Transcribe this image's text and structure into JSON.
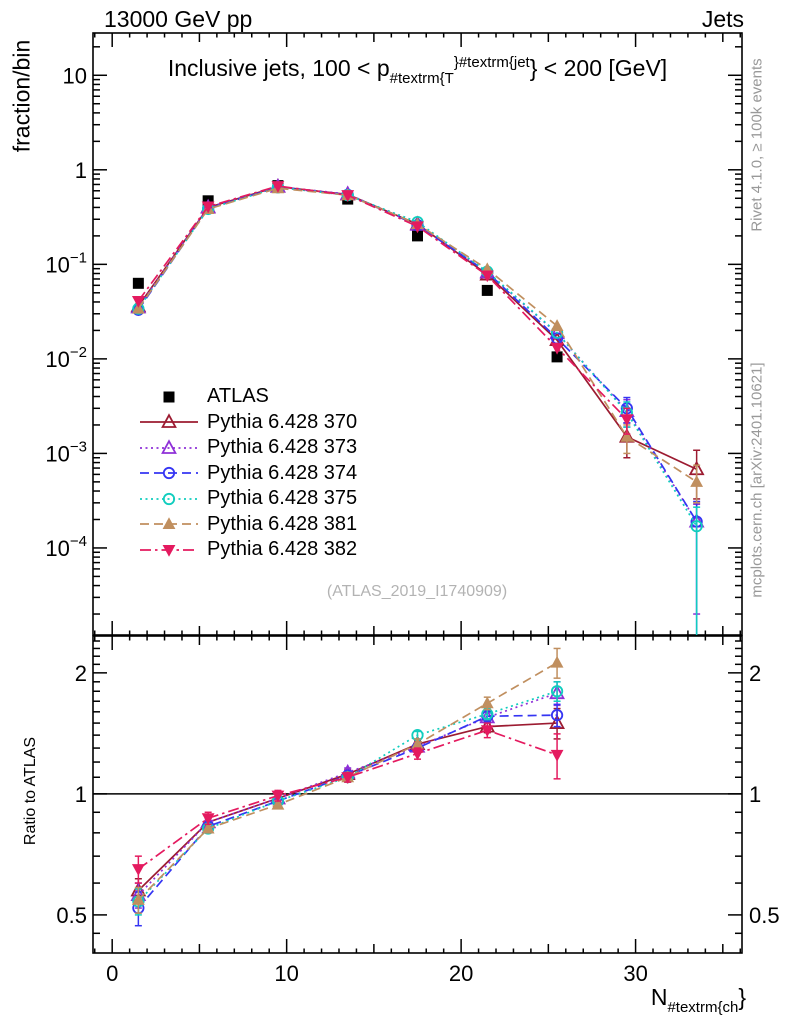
{
  "header": {
    "left": "13000 GeV pp",
    "right": "Jets"
  },
  "title": {
    "parts": [
      {
        "text": "Inclusive jets, 100 < p",
        "style": "normal"
      },
      {
        "text": "#textrm{T",
        "style": "sub"
      },
      {
        "text": "}",
        "style": "sup"
      },
      {
        "text": "#textrm{jet",
        "style": "sup"
      },
      {
        "text": "}",
        "style": "normal"
      },
      {
        "text": " < 200 [GeV]",
        "style": "normal"
      }
    ]
  },
  "x_label": {
    "parts": [
      {
        "text": "N",
        "style": "normal"
      },
      {
        "text": "#textrm{ch",
        "style": "sub"
      },
      {
        "text": "}",
        "style": "normal"
      }
    ]
  },
  "side_texts": {
    "rivet": "Rivet 4.1.0, ≥ 100k events",
    "mcplots": "mcplots.cern.ch [arXiv:2401.10621]"
  },
  "watermark": "(ATLAS_2019_I1740909)",
  "chart_data": {
    "type": "line",
    "x": [
      1.5,
      5.5,
      9.5,
      13.5,
      17.5,
      21.5,
      25.5,
      29.5,
      33.5
    ],
    "x_axis": {
      "range": [
        -1.1,
        36.1
      ],
      "major_ticks": [
        0,
        10,
        20,
        30
      ],
      "medium_ticks": [
        5,
        15,
        25,
        35
      ],
      "minor_step": 1
    },
    "main_panel": {
      "ylabel": "fraction/bin",
      "yscale": "log",
      "range": [
        1.2e-05,
        28
      ],
      "yticks": [
        {
          "v": 10,
          "base": "10",
          "exp": ""
        },
        {
          "v": 1,
          "base": "1",
          "exp": ""
        },
        {
          "v": 0.1,
          "base": "10",
          "exp": "-1"
        },
        {
          "v": 0.01,
          "base": "10",
          "exp": "-2"
        },
        {
          "v": 0.001,
          "base": "10",
          "exp": "-3"
        },
        {
          "v": 0.0001,
          "base": "10",
          "exp": "-4"
        }
      ]
    },
    "ratio_panel": {
      "ylabel": "Ratio to ATLAS",
      "yscale": "log",
      "range": [
        0.402,
        2.47
      ],
      "ref_line": 1,
      "yticks": [
        {
          "v": 2,
          "label": "2"
        },
        {
          "v": 1,
          "label": "1"
        },
        {
          "v": 0.5,
          "label": "0.5"
        }
      ]
    },
    "atlas": {
      "label": "ATLAS",
      "color": "#000000",
      "marker": "square-filled",
      "main_values": [
        0.063,
        0.47,
        0.68,
        0.49,
        0.2,
        0.053,
        0.0105
      ]
    },
    "series": [
      {
        "label": "Pythia 6.428 370",
        "color": "#9c1b31",
        "line": "solid",
        "marker": "triangle-up-open",
        "main_values": [
          0.036,
          0.4,
          0.663,
          0.549,
          0.266,
          0.078,
          0.0158,
          0.0015,
          0.00068
        ],
        "main_errors": [
          null,
          null,
          null,
          null,
          null,
          null,
          null,
          0.0006,
          [
            0.00035,
            0.0004
          ]
        ],
        "ratio_values": [
          0.575,
          0.85,
          0.975,
          1.12,
          1.33,
          1.47,
          1.5
        ],
        "ratio_errors": [
          0.04,
          0.02,
          0.02,
          0.03,
          0.03,
          0.05,
          0.13
        ]
      },
      {
        "label": "Pythia 6.428 373",
        "color": "#8f30d8",
        "line": "dotted",
        "marker": "triangle-up-open",
        "main_values": [
          0.035,
          0.4,
          0.663,
          0.554,
          0.262,
          0.082,
          0.0187,
          0.0028,
          0.00019
        ],
        "main_errors": [
          null,
          null,
          null,
          null,
          null,
          null,
          null,
          0.0009,
          [
            0.00017,
            0.0001
          ]
        ],
        "ratio_values": [
          0.56,
          0.85,
          0.975,
          1.13,
          1.31,
          1.55,
          1.78
        ],
        "ratio_errors": [
          0.04,
          0.02,
          0.02,
          0.03,
          0.03,
          0.05,
          0.12
        ]
      },
      {
        "label": "Pythia 6.428 374",
        "color": "#3535f3",
        "line": "dashed",
        "marker": "circle-open",
        "main_values": [
          0.033,
          0.39,
          0.653,
          0.544,
          0.26,
          0.0827,
          0.0165,
          0.003,
          0.00019
        ],
        "main_errors": [
          null,
          null,
          null,
          null,
          null,
          null,
          null,
          0.0009,
          [
            0.000185,
            0.00012
          ]
        ],
        "ratio_values": [
          0.52,
          0.83,
          0.96,
          1.11,
          1.3,
          1.56,
          1.57
        ],
        "ratio_errors": [
          0.05,
          0.02,
          0.02,
          0.03,
          0.03,
          0.05,
          0.1
        ]
      },
      {
        "label": "Pythia 6.428 375",
        "color": "#10cdbe",
        "line": "dotted",
        "marker": "circle-open",
        "main_values": [
          0.034,
          0.385,
          0.653,
          0.539,
          0.28,
          0.0837,
          0.0189,
          0.0027,
          0.00017
        ],
        "main_errors": [
          null,
          null,
          null,
          null,
          null,
          null,
          null,
          0.0008,
          [
            0.00016,
            0.0001
          ]
        ],
        "ratio_values": [
          0.54,
          0.82,
          0.96,
          1.1,
          1.4,
          1.58,
          1.8
        ],
        "ratio_errors": [
          0.04,
          0.02,
          0.02,
          0.03,
          0.03,
          0.05,
          0.1
        ]
      },
      {
        "label": "Pythia 6.428 381",
        "color": "#c08f5f",
        "line": "dashed",
        "marker": "triangle-up-filled",
        "main_values": [
          0.034,
          0.385,
          0.639,
          0.539,
          0.266,
          0.089,
          0.0223,
          0.0015,
          0.0005
        ],
        "main_errors": [
          null,
          null,
          null,
          null,
          null,
          null,
          null,
          0.0005,
          [
            0.0002,
            0.00025
          ]
        ],
        "ratio_values": [
          0.545,
          0.82,
          0.94,
          1.1,
          1.33,
          1.68,
          2.12
        ],
        "ratio_errors": [
          0.04,
          0.02,
          0.02,
          0.03,
          0.04,
          0.06,
          0.18
        ]
      },
      {
        "label": "Pythia 6.428 382",
        "color": "#e41a5f",
        "line": "dash-dot",
        "marker": "triangle-down-filled",
        "main_values": [
          0.041,
          0.409,
          0.673,
          0.539,
          0.252,
          0.0763,
          0.0131,
          0.0023,
          null
        ],
        "main_errors": [
          null,
          null,
          null,
          null,
          null,
          null,
          null,
          0.0007,
          null
        ],
        "ratio_values": [
          0.65,
          0.87,
          0.99,
          1.1,
          1.26,
          1.44,
          1.25
        ],
        "ratio_errors": [
          0.05,
          0.03,
          0.03,
          0.03,
          0.04,
          0.06,
          0.16
        ]
      }
    ],
    "legend_position": "left-middle",
    "grid": false
  }
}
